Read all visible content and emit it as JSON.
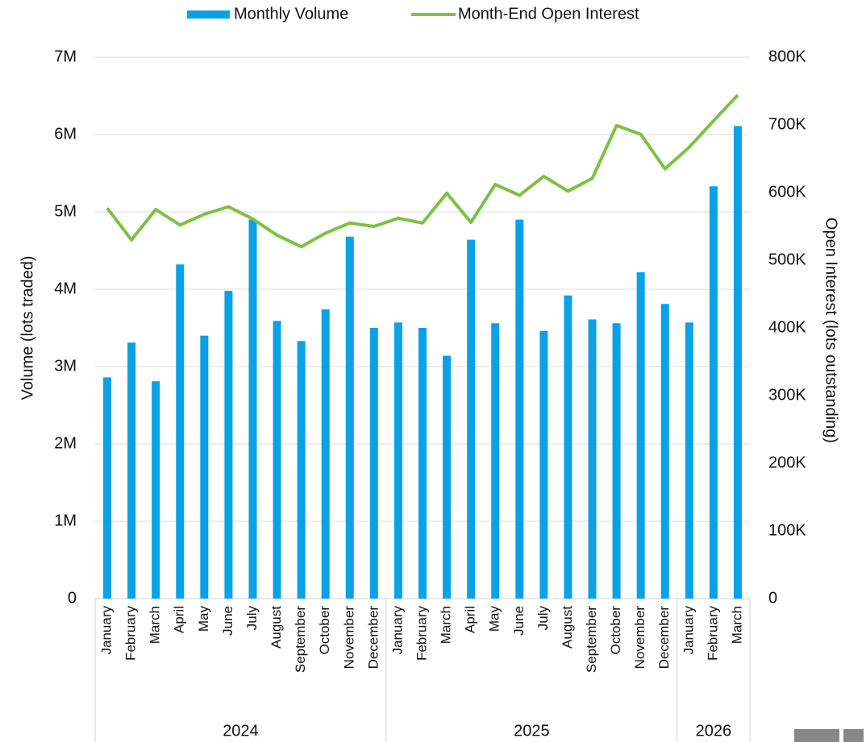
{
  "chart_data": {
    "type": "bar-line",
    "category_groups": [
      {
        "label": "2024",
        "months": [
          "January",
          "February",
          "March",
          "April",
          "May",
          "June",
          "July",
          "August",
          "September",
          "October",
          "November",
          "December"
        ]
      },
      {
        "label": "2025",
        "months": [
          "January",
          "February",
          "March",
          "April",
          "May",
          "June",
          "July",
          "August",
          "September",
          "October",
          "November",
          "December"
        ]
      },
      {
        "label": "2026",
        "months": [
          "January",
          "February",
          "March"
        ]
      }
    ],
    "series": [
      {
        "name": "Monthly Volume",
        "type": "bar",
        "color": "#0aa2e6",
        "axis": "y",
        "values": [
          2860000,
          3310000,
          2810000,
          4320000,
          3400000,
          3980000,
          4900000,
          3590000,
          3330000,
          3740000,
          4680000,
          3500000,
          3570000,
          3500000,
          3140000,
          4640000,
          3560000,
          4900000,
          3460000,
          3920000,
          3610000,
          3560000,
          4220000,
          3810000,
          3570000,
          5330000,
          6110000
        ]
      },
      {
        "name": "Month-End Open Interest",
        "type": "line",
        "color": "#7dc142",
        "axis": "y2",
        "values": [
          577000,
          530000,
          575000,
          552000,
          568000,
          579000,
          561000,
          537000,
          520000,
          540000,
          555000,
          550000,
          562000,
          555000,
          599000,
          556000,
          612000,
          596000,
          624000,
          602000,
          621000,
          699000,
          686000,
          635000,
          667000,
          706000,
          744000
        ]
      }
    ],
    "ylabel": "Volume (lots traded)",
    "y2label": "Open Interest (lots outstanding)",
    "ylim": [
      0,
      7000000
    ],
    "yticks": [
      0,
      {
        "value": 1000000,
        "label": "1M"
      },
      {
        "value": 2000000,
        "label": "2M"
      },
      {
        "value": 3000000,
        "label": "3M"
      },
      {
        "value": 4000000,
        "label": "4M"
      },
      {
        "value": 5000000,
        "label": "5M"
      },
      {
        "value": 6000000,
        "label": "6M"
      },
      {
        "value": 7000000,
        "label": "7M"
      }
    ],
    "y2lim": [
      0,
      800000
    ],
    "y2ticks": [
      0,
      {
        "value": 100000,
        "label": "100K"
      },
      {
        "value": 200000,
        "label": "200K"
      },
      {
        "value": 300000,
        "label": "300K"
      },
      {
        "value": 400000,
        "label": "400K"
      },
      {
        "value": 500000,
        "label": "500K"
      },
      {
        "value": 600000,
        "label": "600K"
      },
      {
        "value": 700000,
        "label": "700K"
      },
      {
        "value": 800000,
        "label": "800K"
      }
    ],
    "grid": true
  }
}
